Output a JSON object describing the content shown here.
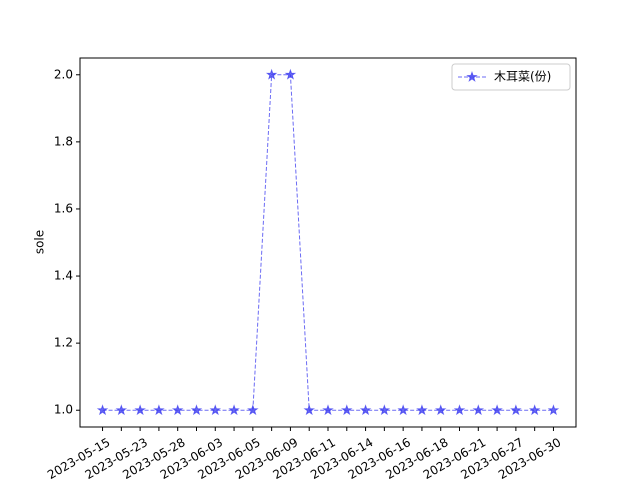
{
  "chart_data": {
    "type": "line",
    "categories": [
      "2023-05-15",
      null,
      "2023-05-23",
      null,
      "2023-05-28",
      null,
      "2023-06-03",
      null,
      "2023-06-05",
      null,
      "2023-06-09",
      null,
      "2023-06-11",
      null,
      "2023-06-14",
      null,
      "2023-06-16",
      null,
      "2023-06-18",
      null,
      "2023-06-21",
      null,
      "2023-06-27",
      null,
      "2023-06-30"
    ],
    "series": [
      {
        "name": "木耳菜(份)",
        "color": "#3a3af0",
        "values": [
          1,
          1,
          1,
          1,
          1,
          1,
          1,
          1,
          1,
          2,
          2,
          1,
          1,
          1,
          1,
          1,
          1,
          1,
          1,
          1,
          1,
          1,
          1,
          1,
          1
        ]
      }
    ],
    "ylabel": "sole",
    "ylim": [
      0.95,
      2.05
    ],
    "yticks": [
      {
        "value": 1.0,
        "label": "1.0"
      },
      {
        "value": 1.2,
        "label": "1.2"
      },
      {
        "value": 1.4,
        "label": "1.4"
      },
      {
        "value": 1.6,
        "label": "1.6"
      },
      {
        "value": 1.8,
        "label": "1.8"
      },
      {
        "value": 2.0,
        "label": "2.0"
      }
    ],
    "legend": "upper right"
  }
}
